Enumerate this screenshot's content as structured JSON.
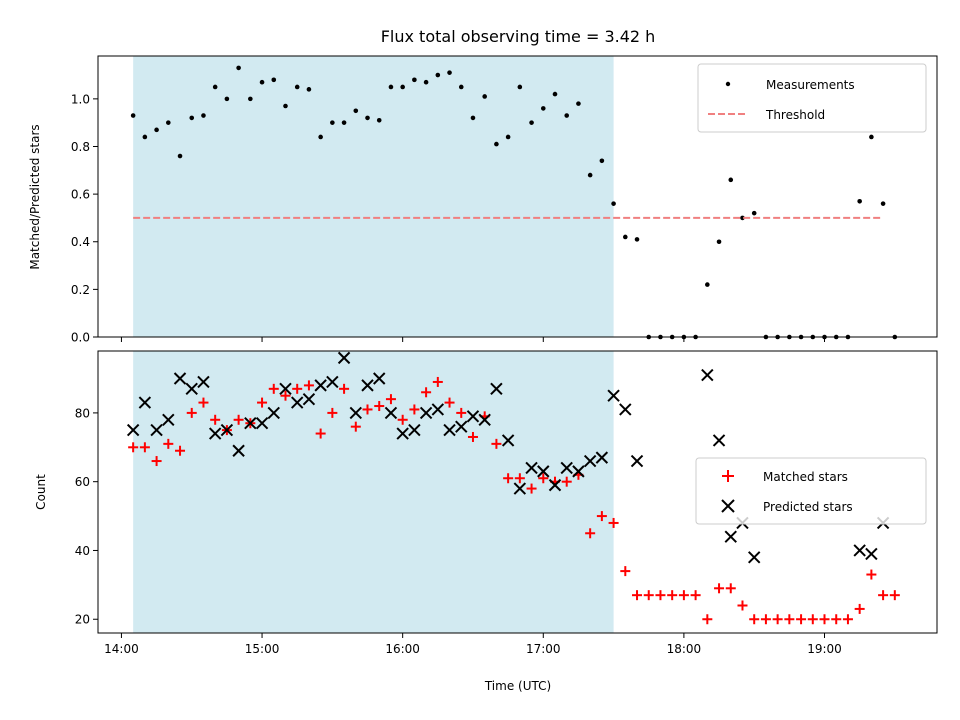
{
  "chart_data": [
    {
      "type": "scatter",
      "title": "Flux total observing time = 3.42 h",
      "ylabel": "Matched/Predicted stars",
      "xlabel": "",
      "ylim": [
        0,
        1.18
      ],
      "xlim": [
        "13:50",
        "19:48"
      ],
      "yticks": [
        "0.0",
        "0.2",
        "0.4",
        "0.6",
        "0.8",
        "1.0"
      ],
      "shaded_interval": [
        "14:05",
        "17:30"
      ],
      "shade_color": "#add8e6",
      "legend_position": "upper right",
      "series": [
        {
          "name": "Measurements",
          "marker": "dot",
          "color": "#000000",
          "points": [
            [
              "14:05",
              0.93
            ],
            [
              "14:10",
              0.84
            ],
            [
              "14:15",
              0.87
            ],
            [
              "14:20",
              0.9
            ],
            [
              "14:25",
              0.76
            ],
            [
              "14:30",
              0.92
            ],
            [
              "14:35",
              0.93
            ],
            [
              "14:40",
              1.05
            ],
            [
              "14:45",
              1.0
            ],
            [
              "14:50",
              1.13
            ],
            [
              "14:55",
              1.0
            ],
            [
              "15:00",
              1.07
            ],
            [
              "15:05",
              1.08
            ],
            [
              "15:10",
              0.97
            ],
            [
              "15:15",
              1.05
            ],
            [
              "15:20",
              1.04
            ],
            [
              "15:25",
              0.84
            ],
            [
              "15:30",
              0.9
            ],
            [
              "15:35",
              0.9
            ],
            [
              "15:40",
              0.95
            ],
            [
              "15:45",
              0.92
            ],
            [
              "15:50",
              0.91
            ],
            [
              "15:55",
              1.05
            ],
            [
              "16:00",
              1.05
            ],
            [
              "16:05",
              1.08
            ],
            [
              "16:10",
              1.07
            ],
            [
              "16:15",
              1.1
            ],
            [
              "16:20",
              1.11
            ],
            [
              "16:25",
              1.05
            ],
            [
              "16:30",
              0.92
            ],
            [
              "16:35",
              1.01
            ],
            [
              "16:40",
              0.81
            ],
            [
              "16:45",
              0.84
            ],
            [
              "16:50",
              1.05
            ],
            [
              "16:55",
              0.9
            ],
            [
              "17:00",
              0.96
            ],
            [
              "17:05",
              1.02
            ],
            [
              "17:10",
              0.93
            ],
            [
              "17:15",
              0.98
            ],
            [
              "17:20",
              0.68
            ],
            [
              "17:25",
              0.74
            ],
            [
              "17:30",
              0.56
            ],
            [
              "17:35",
              0.42
            ],
            [
              "17:40",
              0.41
            ],
            [
              "17:45",
              0.0
            ],
            [
              "17:50",
              0.0
            ],
            [
              "17:55",
              0.0
            ],
            [
              "18:00",
              0.0
            ],
            [
              "18:05",
              0.0
            ],
            [
              "18:10",
              0.22
            ],
            [
              "18:15",
              0.4
            ],
            [
              "18:20",
              0.66
            ],
            [
              "18:25",
              0.5
            ],
            [
              "18:30",
              0.52
            ],
            [
              "18:35",
              0.0
            ],
            [
              "18:40",
              0.0
            ],
            [
              "18:45",
              0.0
            ],
            [
              "18:50",
              0.0
            ],
            [
              "18:55",
              0.0
            ],
            [
              "19:00",
              0.0
            ],
            [
              "19:05",
              0.0
            ],
            [
              "19:10",
              0.0
            ],
            [
              "19:15",
              0.57
            ],
            [
              "19:20",
              0.84
            ],
            [
              "19:25",
              0.56
            ],
            [
              "19:30",
              0.0
            ]
          ]
        },
        {
          "name": "Threshold",
          "marker": "dashed-line",
          "color": "#f08080",
          "points": [
            [
              "14:05",
              0.5
            ],
            [
              "19:25",
              0.5
            ]
          ]
        }
      ]
    },
    {
      "type": "scatter",
      "title": "",
      "ylabel": "Count",
      "xlabel": "Time (UTC)",
      "ylim": [
        16,
        98
      ],
      "xlim": [
        "13:50",
        "19:48"
      ],
      "yticks": [
        "20",
        "40",
        "60",
        "80"
      ],
      "xticks": [
        "14:00",
        "15:00",
        "16:00",
        "17:00",
        "18:00",
        "19:00"
      ],
      "shaded_interval": [
        "14:05",
        "17:30"
      ],
      "shade_color": "#add8e6",
      "legend_position": "center right",
      "series": [
        {
          "name": "Matched stars",
          "marker": "plus",
          "color": "#ff0000",
          "points": [
            [
              "14:05",
              70
            ],
            [
              "14:10",
              70
            ],
            [
              "14:15",
              66
            ],
            [
              "14:20",
              71
            ],
            [
              "14:25",
              69
            ],
            [
              "14:30",
              80
            ],
            [
              "14:35",
              83
            ],
            [
              "14:40",
              78
            ],
            [
              "14:45",
              75
            ],
            [
              "14:50",
              78
            ],
            [
              "14:55",
              77
            ],
            [
              "15:00",
              83
            ],
            [
              "15:05",
              87
            ],
            [
              "15:10",
              85
            ],
            [
              "15:15",
              87
            ],
            [
              "15:20",
              88
            ],
            [
              "15:25",
              74
            ],
            [
              "15:30",
              80
            ],
            [
              "15:35",
              87
            ],
            [
              "15:40",
              76
            ],
            [
              "15:45",
              81
            ],
            [
              "15:50",
              82
            ],
            [
              "15:55",
              84
            ],
            [
              "16:00",
              78
            ],
            [
              "16:05",
              81
            ],
            [
              "16:10",
              86
            ],
            [
              "16:15",
              89
            ],
            [
              "16:20",
              83
            ],
            [
              "16:25",
              80
            ],
            [
              "16:30",
              73
            ],
            [
              "16:35",
              79
            ],
            [
              "16:40",
              71
            ],
            [
              "16:45",
              61
            ],
            [
              "16:50",
              61
            ],
            [
              "16:55",
              58
            ],
            [
              "17:00",
              61
            ],
            [
              "17:05",
              60
            ],
            [
              "17:10",
              60
            ],
            [
              "17:15",
              62
            ],
            [
              "17:20",
              45
            ],
            [
              "17:25",
              50
            ],
            [
              "17:30",
              48
            ],
            [
              "17:35",
              34
            ],
            [
              "17:40",
              27
            ],
            [
              "17:45",
              27
            ],
            [
              "17:50",
              27
            ],
            [
              "17:55",
              27
            ],
            [
              "18:00",
              27
            ],
            [
              "18:05",
              27
            ],
            [
              "18:10",
              20
            ],
            [
              "18:15",
              29
            ],
            [
              "18:20",
              29
            ],
            [
              "18:25",
              24
            ],
            [
              "18:30",
              20
            ],
            [
              "18:35",
              20
            ],
            [
              "18:40",
              20
            ],
            [
              "18:45",
              20
            ],
            [
              "18:50",
              20
            ],
            [
              "18:55",
              20
            ],
            [
              "19:00",
              20
            ],
            [
              "19:05",
              20
            ],
            [
              "19:10",
              20
            ],
            [
              "19:15",
              23
            ],
            [
              "19:20",
              33
            ],
            [
              "19:25",
              27
            ],
            [
              "19:30",
              27
            ]
          ]
        },
        {
          "name": "Predicted stars",
          "marker": "x",
          "color": "#000000",
          "points": [
            [
              "14:05",
              75
            ],
            [
              "14:10",
              83
            ],
            [
              "14:15",
              75
            ],
            [
              "14:20",
              78
            ],
            [
              "14:25",
              90
            ],
            [
              "14:30",
              87
            ],
            [
              "14:35",
              89
            ],
            [
              "14:40",
              74
            ],
            [
              "14:45",
              75
            ],
            [
              "14:50",
              69
            ],
            [
              "14:55",
              77
            ],
            [
              "15:00",
              77
            ],
            [
              "15:05",
              80
            ],
            [
              "15:10",
              87
            ],
            [
              "15:15",
              83
            ],
            [
              "15:20",
              84
            ],
            [
              "15:25",
              88
            ],
            [
              "15:30",
              89
            ],
            [
              "15:35",
              96
            ],
            [
              "15:40",
              80
            ],
            [
              "15:45",
              88
            ],
            [
              "15:50",
              90
            ],
            [
              "15:55",
              80
            ],
            [
              "16:00",
              74
            ],
            [
              "16:05",
              75
            ],
            [
              "16:10",
              80
            ],
            [
              "16:15",
              81
            ],
            [
              "16:20",
              75
            ],
            [
              "16:25",
              76
            ],
            [
              "16:30",
              79
            ],
            [
              "16:35",
              78
            ],
            [
              "16:40",
              87
            ],
            [
              "16:45",
              72
            ],
            [
              "16:50",
              58
            ],
            [
              "16:55",
              64
            ],
            [
              "17:00",
              63
            ],
            [
              "17:05",
              59
            ],
            [
              "17:10",
              64
            ],
            [
              "17:15",
              63
            ],
            [
              "17:20",
              66
            ],
            [
              "17:25",
              67
            ],
            [
              "17:30",
              85
            ],
            [
              "17:35",
              81
            ],
            [
              "17:40",
              66
            ],
            [
              "18:10",
              91
            ],
            [
              "18:15",
              72
            ],
            [
              "18:20",
              44
            ],
            [
              "18:25",
              48
            ],
            [
              "18:30",
              38
            ],
            [
              "19:15",
              40
            ],
            [
              "19:20",
              39
            ],
            [
              "19:25",
              48
            ]
          ]
        }
      ]
    }
  ]
}
